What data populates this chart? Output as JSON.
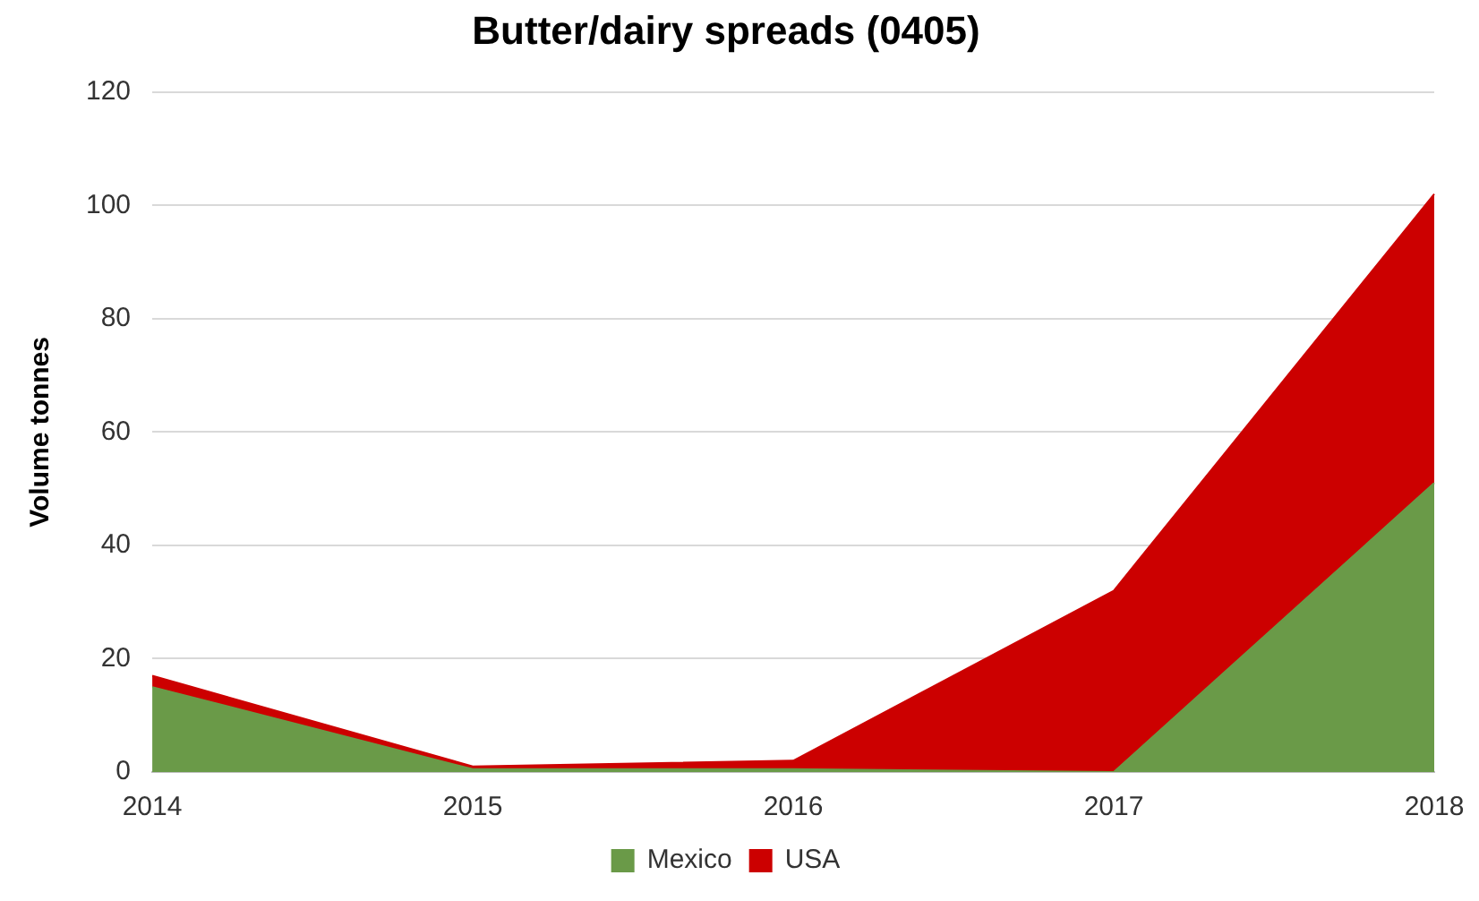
{
  "chart_data": {
    "type": "area",
    "title": "Butter/dairy spreads (0405)",
    "ylabel": "Volume tonnes",
    "categories": [
      "2014",
      "2015",
      "2016",
      "2017",
      "2018"
    ],
    "stacked": true,
    "series": [
      {
        "name": "Mexico",
        "color": "#6a9a48",
        "values": [
          15,
          0.5,
          0.5,
          0,
          51
        ]
      },
      {
        "name": "USA",
        "color": "#cc0000",
        "values": [
          2,
          0.5,
          1.5,
          32,
          51
        ]
      }
    ],
    "ylim": [
      0,
      120
    ],
    "yticks": [
      0,
      20,
      40,
      60,
      80,
      100,
      120
    ],
    "grid": "y",
    "legend": "bottom"
  }
}
